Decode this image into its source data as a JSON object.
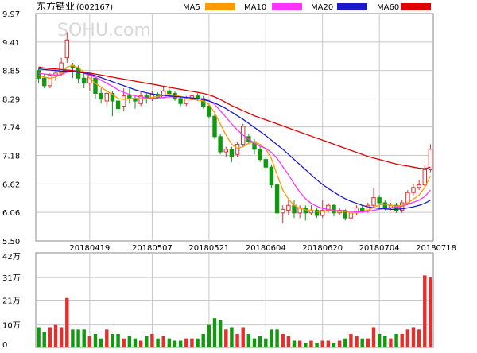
{
  "header": {
    "stock_name": "东方锆业",
    "stock_code": "(002167)",
    "watermark": "SOHU.com"
  },
  "legend": [
    {
      "label": "MA5",
      "color": "#ff9900"
    },
    {
      "label": "MA10",
      "color": "#ff33ff"
    },
    {
      "label": "MA20",
      "color": "#1a1acc"
    },
    {
      "label": "MA60",
      "color": "#e00000"
    }
  ],
  "colors": {
    "up": "#e03030",
    "down": "#119911",
    "grid": "#c8c8c8",
    "border": "#888888"
  },
  "chart_data": [
    {
      "type": "candlestick",
      "ylim": [
        5.5,
        9.97
      ],
      "y_ticks": [
        "9.97",
        "9.41",
        "8.85",
        "8.29",
        "7.74",
        "7.18",
        "6.62",
        "6.06",
        "5.50"
      ],
      "x_labels": [
        "20180419",
        "20180507",
        "20180521",
        "20180604",
        "20180620",
        "20180704",
        "20180718"
      ],
      "x_label_index": [
        9,
        20,
        30,
        40,
        50,
        60,
        70
      ],
      "candles": [
        [
          8.85,
          8.7,
          8.9,
          8.6
        ],
        [
          8.7,
          8.55,
          8.78,
          8.5
        ],
        [
          8.55,
          8.75,
          8.8,
          8.5
        ],
        [
          8.75,
          8.8,
          8.88,
          8.65
        ],
        [
          8.8,
          9.0,
          9.1,
          8.75
        ],
        [
          9.1,
          9.45,
          9.6,
          9.0
        ],
        [
          8.95,
          8.9,
          9.0,
          8.7
        ],
        [
          8.9,
          8.7,
          8.95,
          8.6
        ],
        [
          8.7,
          8.6,
          8.8,
          8.5
        ],
        [
          8.6,
          8.75,
          8.8,
          8.45
        ],
        [
          8.7,
          8.4,
          8.72,
          8.3
        ],
        [
          8.4,
          8.3,
          8.5,
          8.2
        ],
        [
          8.25,
          8.4,
          8.45,
          8.15
        ],
        [
          8.4,
          8.25,
          8.45,
          7.95
        ],
        [
          8.25,
          8.1,
          8.3,
          8.0
        ],
        [
          8.15,
          8.35,
          8.5,
          8.05
        ],
        [
          8.35,
          8.3,
          8.5,
          8.2
        ],
        [
          8.3,
          8.25,
          8.35,
          8.1
        ],
        [
          8.2,
          8.35,
          8.45,
          8.15
        ],
        [
          8.35,
          8.3,
          8.4,
          8.2
        ],
        [
          8.3,
          8.38,
          8.45,
          8.25
        ],
        [
          8.38,
          8.32,
          8.42,
          8.28
        ],
        [
          8.32,
          8.45,
          8.55,
          8.3
        ],
        [
          8.45,
          8.4,
          8.55,
          8.35
        ],
        [
          8.4,
          8.3,
          8.45,
          8.25
        ],
        [
          8.3,
          8.2,
          8.32,
          8.15
        ],
        [
          8.2,
          8.3,
          8.35,
          8.15
        ],
        [
          8.3,
          8.35,
          8.4,
          8.25
        ],
        [
          8.35,
          8.3,
          8.4,
          8.25
        ],
        [
          8.3,
          8.15,
          8.35,
          8.1
        ],
        [
          8.15,
          7.95,
          8.2,
          7.9
        ],
        [
          7.95,
          7.55,
          8.0,
          7.5
        ],
        [
          7.55,
          7.25,
          7.6,
          7.2
        ],
        [
          7.25,
          7.3,
          7.35,
          7.15
        ],
        [
          7.3,
          7.15,
          7.35,
          7.05
        ],
        [
          7.2,
          7.4,
          7.45,
          7.15
        ],
        [
          7.4,
          7.75,
          7.8,
          7.35
        ],
        [
          7.55,
          7.45,
          7.6,
          7.4
        ],
        [
          7.45,
          7.3,
          7.5,
          7.2
        ],
        [
          7.3,
          7.1,
          7.35,
          7.05
        ],
        [
          7.1,
          6.95,
          7.15,
          6.9
        ],
        [
          6.95,
          6.6,
          7.0,
          6.55
        ],
        [
          6.6,
          6.05,
          6.65,
          5.95
        ],
        [
          6.05,
          6.12,
          6.2,
          5.85
        ],
        [
          6.1,
          6.2,
          6.3,
          6.0
        ],
        [
          6.2,
          6.05,
          6.3,
          5.95
        ],
        [
          6.05,
          6.15,
          6.2,
          5.95
        ],
        [
          6.15,
          6.05,
          6.2,
          5.9
        ],
        [
          6.05,
          6.1,
          6.2,
          6.0
        ],
        [
          6.1,
          6.0,
          6.15,
          5.95
        ],
        [
          6.0,
          6.1,
          6.3,
          5.95
        ],
        [
          6.1,
          6.2,
          6.25,
          6.05
        ],
        [
          6.2,
          6.05,
          6.22,
          5.98
        ],
        [
          6.05,
          6.1,
          6.15,
          6.0
        ],
        [
          6.1,
          5.95,
          6.12,
          5.9
        ],
        [
          5.95,
          6.05,
          6.1,
          5.9
        ],
        [
          6.05,
          6.15,
          6.2,
          6.0
        ],
        [
          6.15,
          6.1,
          6.2,
          6.05
        ],
        [
          6.1,
          6.2,
          6.25,
          6.05
        ],
        [
          6.2,
          6.35,
          6.55,
          6.15
        ],
        [
          6.35,
          6.25,
          6.4,
          6.15
        ],
        [
          6.25,
          6.15,
          6.3,
          6.1
        ],
        [
          6.15,
          6.2,
          6.25,
          6.1
        ],
        [
          6.2,
          6.1,
          6.25,
          6.05
        ],
        [
          6.1,
          6.25,
          6.3,
          6.05
        ],
        [
          6.25,
          6.45,
          6.5,
          6.2
        ],
        [
          6.45,
          6.55,
          6.62,
          6.4
        ],
        [
          6.55,
          6.6,
          6.7,
          6.5
        ],
        [
          6.6,
          6.9,
          7.0,
          6.55
        ],
        [
          6.9,
          7.3,
          7.4,
          6.85
        ]
      ],
      "ma": {
        "MA5": [
          8.75,
          8.72,
          8.7,
          8.72,
          8.78,
          8.92,
          8.95,
          8.9,
          8.82,
          8.7,
          8.6,
          8.52,
          8.45,
          8.38,
          8.3,
          8.28,
          8.3,
          8.3,
          8.3,
          8.3,
          8.32,
          8.34,
          8.36,
          8.38,
          8.36,
          8.34,
          8.3,
          8.28,
          8.27,
          8.25,
          8.18,
          8.02,
          7.8,
          7.58,
          7.4,
          7.32,
          7.35,
          7.42,
          7.44,
          7.4,
          7.3,
          7.12,
          6.8,
          6.5,
          6.32,
          6.2,
          6.14,
          6.11,
          6.1,
          6.08,
          6.08,
          6.09,
          6.09,
          6.08,
          6.08,
          6.05,
          6.05,
          6.08,
          6.1,
          6.16,
          6.21,
          6.22,
          6.2,
          6.18,
          6.2,
          6.25,
          6.32,
          6.4,
          6.55,
          6.78
        ],
        "MA10": [
          8.8,
          8.78,
          8.77,
          8.76,
          8.77,
          8.82,
          8.84,
          8.83,
          8.8,
          8.76,
          8.72,
          8.66,
          8.6,
          8.54,
          8.47,
          8.42,
          8.38,
          8.35,
          8.33,
          8.31,
          8.3,
          8.31,
          8.32,
          8.33,
          8.33,
          8.33,
          8.32,
          8.31,
          8.3,
          8.29,
          8.26,
          8.18,
          8.06,
          7.93,
          7.8,
          7.68,
          7.58,
          7.5,
          7.42,
          7.36,
          7.32,
          7.24,
          7.12,
          6.96,
          6.8,
          6.62,
          6.46,
          6.33,
          6.24,
          6.18,
          6.14,
          6.12,
          6.1,
          6.09,
          6.09,
          6.08,
          6.07,
          6.07,
          6.08,
          6.1,
          6.12,
          6.14,
          6.15,
          6.16,
          6.18,
          6.22,
          6.26,
          6.3,
          6.37,
          6.5
        ],
        "MA20": [
          8.88,
          8.87,
          8.86,
          8.85,
          8.84,
          8.84,
          8.83,
          8.82,
          8.8,
          8.78,
          8.75,
          8.71,
          8.67,
          8.63,
          8.59,
          8.55,
          8.51,
          8.47,
          8.44,
          8.41,
          8.39,
          8.37,
          8.36,
          8.35,
          8.34,
          8.33,
          8.32,
          8.31,
          8.3,
          8.28,
          8.25,
          8.21,
          8.16,
          8.1,
          8.03,
          7.96,
          7.89,
          7.81,
          7.73,
          7.65,
          7.57,
          7.48,
          7.39,
          7.3,
          7.2,
          7.1,
          7.0,
          6.9,
          6.8,
          6.7,
          6.61,
          6.53,
          6.46,
          6.39,
          6.33,
          6.28,
          6.24,
          6.2,
          6.17,
          6.15,
          6.14,
          6.13,
          6.12,
          6.12,
          6.13,
          6.15,
          6.17,
          6.2,
          6.24,
          6.3
        ],
        "MA60": [
          8.92,
          8.9,
          8.89,
          8.88,
          8.87,
          8.86,
          8.85,
          8.83,
          8.82,
          8.8,
          8.78,
          8.76,
          8.74,
          8.72,
          8.7,
          8.68,
          8.66,
          8.64,
          8.62,
          8.6,
          8.58,
          8.56,
          8.54,
          8.52,
          8.5,
          8.48,
          8.46,
          8.44,
          8.42,
          8.4,
          8.37,
          8.33,
          8.28,
          8.22,
          8.16,
          8.11,
          8.06,
          8.01,
          7.96,
          7.92,
          7.88,
          7.84,
          7.8,
          7.76,
          7.72,
          7.68,
          7.64,
          7.6,
          7.56,
          7.52,
          7.48,
          7.44,
          7.4,
          7.36,
          7.32,
          7.28,
          7.24,
          7.2,
          7.16,
          7.13,
          7.1,
          7.07,
          7.04,
          7.01,
          6.99,
          6.97,
          6.95,
          6.93,
          6.92,
          6.95
        ]
      }
    },
    {
      "type": "bar",
      "title": "volume",
      "unit": "万",
      "ylim": [
        0,
        42
      ],
      "y_ticks": [
        "42万",
        "31万",
        "21万",
        "10万",
        "0"
      ],
      "y_tick_values": [
        42,
        31,
        21,
        10,
        0
      ],
      "values": [
        9,
        7,
        9,
        10,
        9,
        22,
        8,
        8,
        8,
        5,
        6,
        4,
        8,
        6,
        6,
        4,
        5,
        4,
        3,
        5,
        6,
        4,
        5,
        4,
        3,
        3,
        4,
        4,
        4,
        6,
        10,
        13,
        12,
        8,
        9,
        6,
        9,
        6,
        4,
        5,
        4,
        8,
        8,
        6,
        5,
        3,
        3,
        2,
        3,
        2,
        3,
        3,
        2,
        3,
        4,
        6,
        5,
        4,
        4,
        9,
        6,
        5,
        4,
        6,
        6,
        8,
        9,
        8,
        32,
        31
      ]
    }
  ]
}
